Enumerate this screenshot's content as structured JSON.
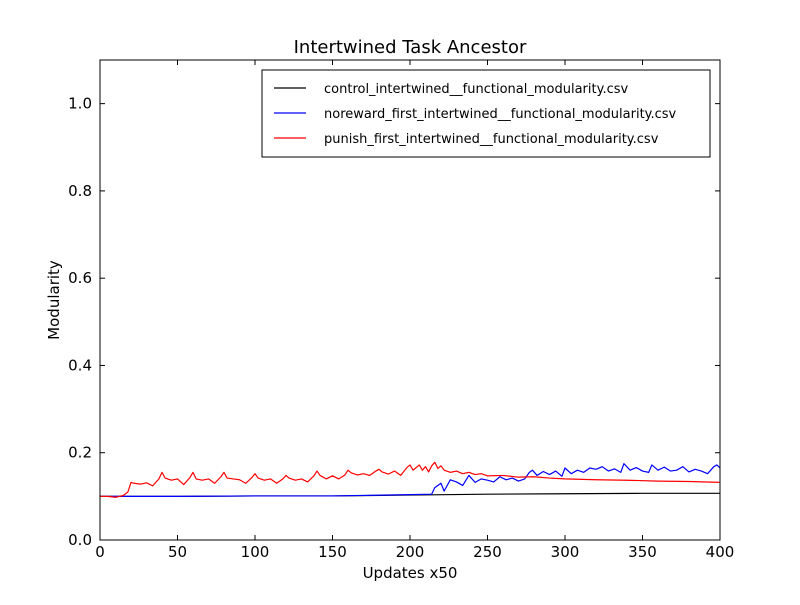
{
  "chart_data": {
    "type": "line",
    "title": "Intertwined Task Ancestor",
    "xlabel": "Updates x50",
    "ylabel": "Modularity",
    "xlim": [
      0,
      400
    ],
    "ylim": [
      0,
      1.1
    ],
    "xticks": [
      0,
      50,
      100,
      150,
      200,
      250,
      300,
      350,
      400
    ],
    "xtick_labels": [
      "0",
      "50",
      "100",
      "150",
      "200",
      "250",
      "300",
      "350",
      "400"
    ],
    "yticks": [
      0.0,
      0.2,
      0.4,
      0.6,
      0.8,
      1.0
    ],
    "ytick_labels": [
      "0.0",
      "0.2",
      "0.4",
      "0.6",
      "0.8",
      "1.0"
    ],
    "grid": false,
    "legend_position": "top-right",
    "series": [
      {
        "name": "control_intertwined__functional_modularity.csv",
        "color": "#000000",
        "x": [
          0,
          50,
          100,
          150,
          200,
          250,
          300,
          350,
          400
        ],
        "y": [
          0.1,
          0.1,
          0.101,
          0.101,
          0.103,
          0.105,
          0.106,
          0.107,
          0.107
        ]
      },
      {
        "name": "noreward_first_intertwined__functional_modularity.csv",
        "color": "#0000ff",
        "x": [
          0,
          50,
          100,
          150,
          200,
          214,
          216,
          220,
          222,
          226,
          230,
          234,
          238,
          242,
          246,
          250,
          254,
          258,
          262,
          266,
          270,
          274,
          277,
          279,
          282,
          286,
          290,
          294,
          298,
          300,
          304,
          308,
          312,
          316,
          320,
          324,
          328,
          332,
          336,
          338,
          342,
          346,
          350,
          354,
          356,
          360,
          364,
          368,
          372,
          376,
          380,
          384,
          388,
          392,
          396,
          398,
          400
        ],
        "y": [
          0.1,
          0.1,
          0.101,
          0.101,
          0.104,
          0.105,
          0.12,
          0.13,
          0.112,
          0.138,
          0.133,
          0.125,
          0.148,
          0.132,
          0.14,
          0.137,
          0.133,
          0.145,
          0.138,
          0.142,
          0.135,
          0.14,
          0.155,
          0.16,
          0.148,
          0.157,
          0.15,
          0.158,
          0.146,
          0.165,
          0.152,
          0.16,
          0.155,
          0.165,
          0.162,
          0.168,
          0.158,
          0.163,
          0.155,
          0.175,
          0.16,
          0.166,
          0.158,
          0.155,
          0.172,
          0.16,
          0.167,
          0.158,
          0.16,
          0.168,
          0.156,
          0.162,
          0.158,
          0.152,
          0.168,
          0.172,
          0.165
        ]
      },
      {
        "name": "punish_first_intertwined__functional_modularity.csv",
        "color": "#ff0000",
        "x": [
          0,
          5,
          10,
          15,
          18,
          20,
          22,
          26,
          30,
          34,
          38,
          40,
          42,
          46,
          50,
          54,
          58,
          60,
          62,
          66,
          70,
          74,
          78,
          80,
          82,
          86,
          90,
          94,
          98,
          100,
          102,
          106,
          110,
          114,
          118,
          120,
          122,
          126,
          130,
          134,
          138,
          140,
          142,
          146,
          150,
          154,
          158,
          160,
          162,
          166,
          170,
          174,
          178,
          180,
          182,
          186,
          190,
          194,
          198,
          200,
          202,
          206,
          208,
          210,
          212,
          214,
          216,
          218,
          220,
          222,
          226,
          230,
          234,
          238,
          242,
          246,
          250,
          260,
          270,
          280,
          290,
          300,
          320,
          340,
          360,
          380,
          400
        ],
        "y": [
          0.1,
          0.1,
          0.098,
          0.102,
          0.11,
          0.132,
          0.13,
          0.128,
          0.131,
          0.124,
          0.14,
          0.155,
          0.142,
          0.137,
          0.14,
          0.127,
          0.143,
          0.155,
          0.14,
          0.137,
          0.14,
          0.13,
          0.145,
          0.155,
          0.142,
          0.14,
          0.138,
          0.13,
          0.143,
          0.152,
          0.142,
          0.137,
          0.14,
          0.13,
          0.14,
          0.148,
          0.142,
          0.137,
          0.14,
          0.133,
          0.147,
          0.158,
          0.148,
          0.14,
          0.147,
          0.14,
          0.149,
          0.16,
          0.154,
          0.149,
          0.152,
          0.148,
          0.158,
          0.162,
          0.156,
          0.151,
          0.158,
          0.148,
          0.166,
          0.172,
          0.16,
          0.172,
          0.16,
          0.168,
          0.156,
          0.17,
          0.178,
          0.164,
          0.17,
          0.16,
          0.155,
          0.158,
          0.152,
          0.155,
          0.15,
          0.152,
          0.147,
          0.148,
          0.144,
          0.145,
          0.142,
          0.14,
          0.138,
          0.137,
          0.135,
          0.134,
          0.132
        ]
      }
    ]
  }
}
